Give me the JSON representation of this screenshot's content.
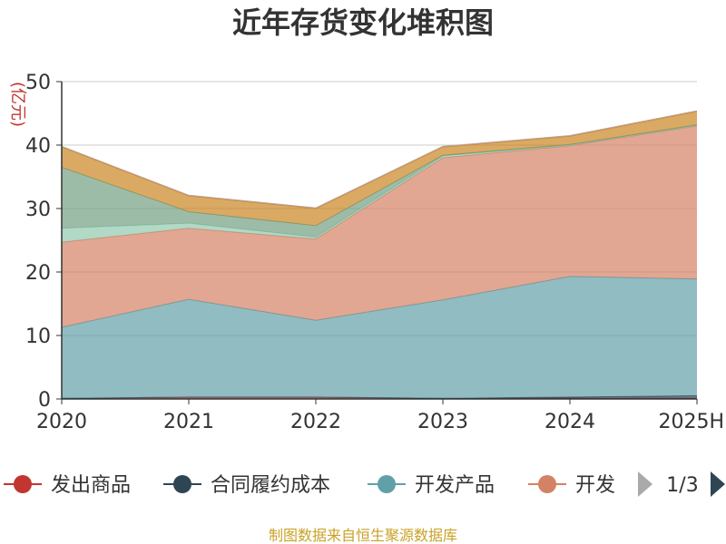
{
  "chart_data": {
    "type": "area",
    "stacked": true,
    "title": "近年存货变化堆积图",
    "y_unit": "(亿元)",
    "categories": [
      "2020",
      "2021",
      "2022",
      "2023",
      "2024",
      "2025H"
    ],
    "ylim": [
      0,
      50
    ],
    "yticks": [
      0,
      10,
      20,
      30,
      40,
      50
    ],
    "grid": true,
    "series": [
      {
        "name": "发出商品",
        "color": "#c23531",
        "values": [
          0.1,
          0.3,
          0.3,
          0.1,
          0.1,
          0.1
        ]
      },
      {
        "name": "合同履约成本",
        "color": "#2f4554",
        "values": [
          0,
          0,
          0,
          0,
          0.2,
          0.4
        ]
      },
      {
        "name": "开发产品",
        "color": "#61a0a8",
        "values": [
          11.2,
          15.4,
          12.1,
          15.5,
          19.0,
          18.4
        ]
      },
      {
        "name": "开发成本",
        "color": "#d48265",
        "values": [
          13.4,
          11.2,
          12.8,
          22.4,
          20.6,
          24.1
        ]
      },
      {
        "name": "",
        "color": "#91c7ae",
        "values": [
          2.2,
          0.8,
          0.3,
          0.3,
          0.1,
          0.1
        ]
      },
      {
        "name": "",
        "color": "#749f83",
        "values": [
          9.6,
          1.8,
          1.8,
          0.1,
          0.1,
          0.1
        ]
      },
      {
        "name": "",
        "color": "#ca8622",
        "values": [
          3.2,
          2.5,
          2.7,
          1.3,
          1.3,
          2.1
        ]
      },
      {
        "name": "",
        "color": "#bda29a",
        "values": [
          0.1,
          0.1,
          0.1,
          0.1,
          0.1,
          0.1
        ]
      }
    ]
  },
  "legend": {
    "visible_items": [
      {
        "label": "发出商品",
        "color": "#c23531"
      },
      {
        "label": "合同履约成本",
        "color": "#2f4554"
      },
      {
        "label": "开发产品",
        "color": "#61a0a8"
      },
      {
        "label": "开发",
        "color": "#d48265"
      }
    ],
    "page_label": "1/3"
  },
  "source": "制图数据来自恒生聚源数据库"
}
